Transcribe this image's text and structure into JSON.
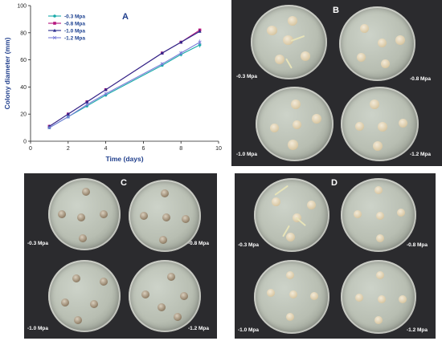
{
  "panels": {
    "a": {
      "letter": "A"
    },
    "b": {
      "letter": "B",
      "dish_labels": [
        "-0.3 Mpa",
        "-0.8 Mpa",
        "-1.0 Mpa",
        "-1.2 Mpa"
      ]
    },
    "c": {
      "letter": "C",
      "dish_labels": [
        "-0.3 Mpa",
        "-0.8 Mpa",
        "-1.0 Mpa",
        "-1.2 Mpa"
      ]
    },
    "d": {
      "letter": "D",
      "dish_labels": [
        "-0.3 Mpa",
        "-0.8 Mpa",
        "-1.0 Mpa",
        "-1.2 Mpa"
      ]
    }
  },
  "chart_data": {
    "type": "line",
    "title": "",
    "xlabel": "Time (days)",
    "ylabel": "Colony diameter (mm)",
    "xlim": [
      0,
      10
    ],
    "ylim": [
      0,
      100
    ],
    "xticks": [
      0,
      2,
      4,
      6,
      8,
      10
    ],
    "yticks": [
      0,
      20,
      40,
      60,
      80,
      100
    ],
    "x": [
      1,
      2,
      3,
      4,
      7,
      8,
      9
    ],
    "legend_position": "top-left",
    "grid": false,
    "series": [
      {
        "name": "-0.3 Mpa",
        "color": "#17a9a8",
        "marker": "circle",
        "values": [
          10,
          18,
          26,
          34,
          56,
          64,
          71
        ],
        "errors": [
          1,
          1,
          1,
          1,
          1,
          1.5,
          2
        ]
      },
      {
        "name": "-0.8 Mpa",
        "color": "#b5157d",
        "marker": "square",
        "values": [
          11,
          20,
          29,
          38,
          65,
          73,
          82
        ],
        "errors": [
          1,
          1,
          1,
          1,
          1,
          1,
          1
        ]
      },
      {
        "name": "-1.0 Mpa",
        "color": "#2b2c8c",
        "marker": "triangle",
        "values": [
          11,
          20,
          29,
          38,
          65,
          73,
          81
        ],
        "errors": [
          1,
          1,
          1,
          1,
          1,
          1,
          1
        ]
      },
      {
        "name": "-1.2 Mpa",
        "color": "#7a7ed8",
        "marker": "x",
        "values": [
          10,
          18,
          27,
          35,
          57,
          65,
          73
        ],
        "errors": [
          1,
          1,
          1,
          1,
          1,
          1.5,
          2
        ]
      }
    ]
  }
}
